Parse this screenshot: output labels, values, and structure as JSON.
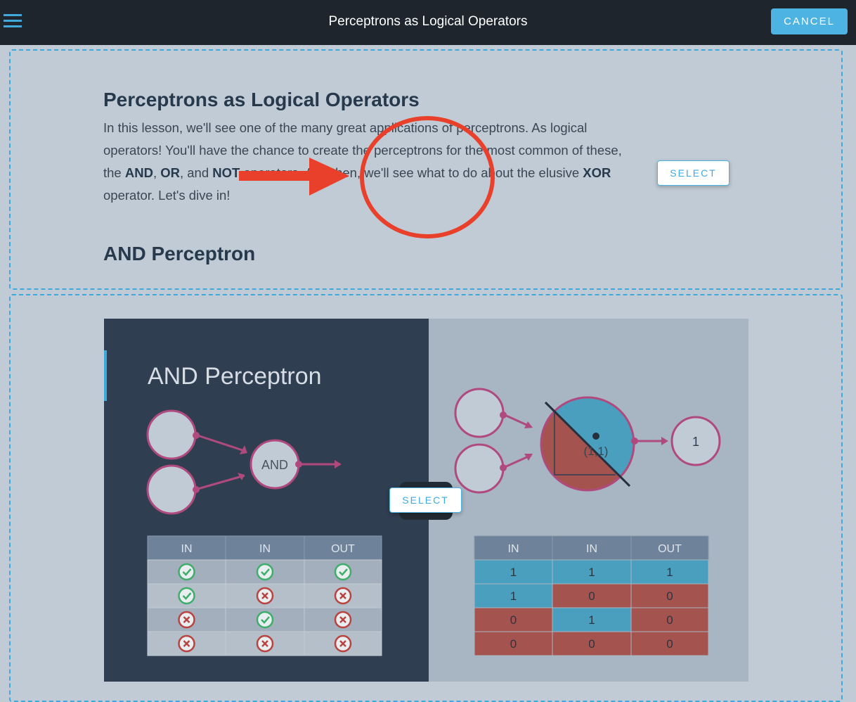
{
  "topbar": {
    "title": "Perceptrons as Logical Operators",
    "cancel_label": "CANCEL",
    "menu_icon": "hamburger-icon"
  },
  "lesson": {
    "heading": "Perceptrons as Logical Operators",
    "paragraph_parts": [
      "In this lesson, we'll see one of the many great applications of perceptrons. As logical operators! You'll have the chance to create the perceptrons for the most common of these, the ",
      "AND",
      ", ",
      "OR",
      ", and ",
      "NOT",
      " operators. And then, we'll see what to do about the elusive ",
      "XOR",
      " operator. Let's dive in!"
    ],
    "subheading": "AND Perceptron",
    "select_label": "SELECT"
  },
  "figure": {
    "title": "AND Perceptron",
    "node_label": "AND",
    "output_value": "1",
    "point_label": "(1,1)",
    "select_label": "SELECT",
    "left_table": {
      "headers": [
        "IN",
        "IN",
        "OUT"
      ],
      "rows": [
        [
          "check",
          "check",
          "check"
        ],
        [
          "check",
          "cross",
          "cross"
        ],
        [
          "cross",
          "check",
          "cross"
        ],
        [
          "cross",
          "cross",
          "cross"
        ]
      ]
    },
    "right_table": {
      "headers": [
        "IN",
        "IN",
        "OUT"
      ],
      "rows": [
        [
          "1",
          "1",
          "1"
        ],
        [
          "1",
          "0",
          "0"
        ],
        [
          "0",
          "1",
          "0"
        ],
        [
          "0",
          "0",
          "0"
        ]
      ]
    },
    "colors": {
      "blue": "#4a9fbe",
      "red": "#a5534f",
      "pink": "#b04a7e",
      "check": "#3fae6a",
      "cross": "#b8433f"
    }
  }
}
